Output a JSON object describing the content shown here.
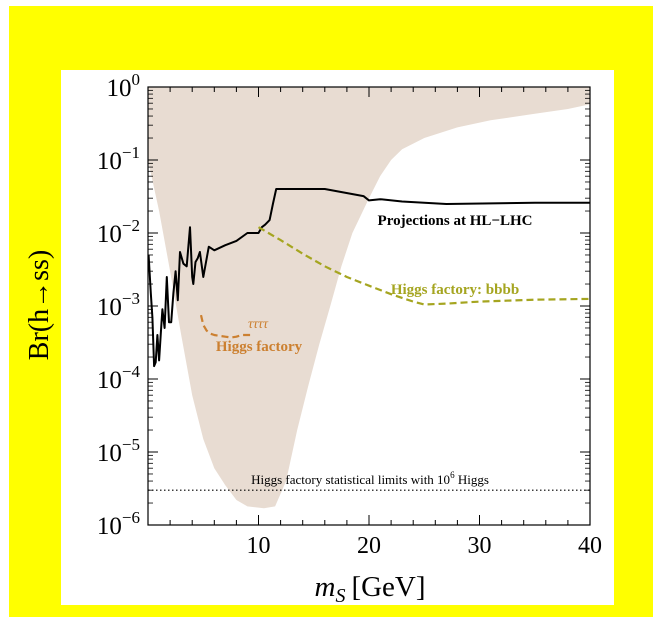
{
  "chart_data": {
    "type": "line",
    "xlabel_italic": "m",
    "xlabel_sub": "S",
    "xlabel_rest": "[GeV]",
    "ylabel": "Br(h→ss)",
    "xlim": [
      0,
      40
    ],
    "ylim": [
      1e-06,
      1
    ],
    "yscale": "log",
    "x_ticks": [
      10,
      20,
      30,
      40
    ],
    "y_ticks": [
      {
        "value": 1e-06,
        "base": "10",
        "exp": "−6"
      },
      {
        "value": 1e-05,
        "base": "10",
        "exp": "−5"
      },
      {
        "value": 0.0001,
        "base": "10",
        "exp": "−4"
      },
      {
        "value": 0.001,
        "base": "10",
        "exp": "−3"
      },
      {
        "value": 0.01,
        "base": "10",
        "exp": "−2"
      },
      {
        "value": 0.1,
        "base": "10",
        "exp": "−1"
      },
      {
        "value": 1,
        "base": "10",
        "exp": "0"
      }
    ],
    "excluded_region": {
      "color": "#e8dcd2",
      "left_edge": [
        [
          0,
          1
        ],
        [
          0,
          0.1
        ],
        [
          1,
          0.02
        ],
        [
          2,
          0.003
        ],
        [
          3,
          0.0004
        ],
        [
          4,
          6e-05
        ],
        [
          5,
          1.5e-05
        ],
        [
          6,
          6e-06
        ],
        [
          7,
          3.5e-06
        ],
        [
          8,
          2.2e-06
        ],
        [
          9,
          1.8e-06
        ],
        [
          10.5,
          1.7e-06
        ],
        [
          11.5,
          1.8e-06
        ]
      ],
      "right_edge": [
        [
          11.5,
          1.8e-06
        ],
        [
          12.5,
          4e-06
        ],
        [
          13.5,
          2e-05
        ],
        [
          14.5,
          8e-05
        ],
        [
          15.5,
          0.0003
        ],
        [
          16.5,
          0.001
        ],
        [
          17.5,
          0.0035
        ],
        [
          18.5,
          0.01
        ],
        [
          20,
          0.03
        ],
        [
          21,
          0.06
        ],
        [
          22,
          0.1
        ],
        [
          23,
          0.14
        ],
        [
          25,
          0.2
        ],
        [
          28,
          0.28
        ],
        [
          31,
          0.35
        ],
        [
          35,
          0.43
        ],
        [
          38,
          0.5
        ],
        [
          40,
          0.58
        ],
        [
          40,
          1
        ]
      ]
    },
    "series": [
      {
        "name": "Projections at HL−LHC",
        "color": "#000000",
        "style": "solid",
        "x": [
          0.05,
          0.25,
          0.4,
          0.55,
          0.7,
          0.85,
          1.0,
          1.15,
          1.3,
          1.5,
          1.7,
          1.9,
          2.1,
          2.3,
          2.5,
          2.7,
          2.9,
          3.2,
          3.5,
          3.8,
          4.0,
          4.1,
          4.3,
          4.5,
          4.7,
          5.0,
          5.5,
          6.0,
          7.0,
          8.0,
          9.0,
          10.0,
          10.3,
          10.6,
          11.0,
          11.3,
          11.6,
          16.0,
          19.5,
          20.0,
          21.0,
          23.0,
          27.0,
          35.0,
          40.0
        ],
        "y": [
          0.005,
          0.0015,
          0.0007,
          0.00015,
          0.00017,
          0.0004,
          0.00018,
          0.0004,
          0.0009,
          0.0005,
          0.0025,
          0.0006,
          0.0006,
          0.0015,
          0.003,
          0.0012,
          0.0055,
          0.0038,
          0.0035,
          0.012,
          0.0025,
          0.002,
          0.004,
          0.0045,
          0.0055,
          0.0025,
          0.0065,
          0.0058,
          0.0068,
          0.0078,
          0.01,
          0.01,
          0.012,
          0.013,
          0.015,
          0.025,
          0.04,
          0.04,
          0.032,
          0.028,
          0.029,
          0.027,
          0.025,
          0.026,
          0.026
        ],
        "label": "Projections at HL−LHC"
      },
      {
        "name": "Higgs factory: bbbb",
        "color": "#a5a520",
        "style": "dashed",
        "x": [
          10,
          12,
          14,
          16,
          18,
          20,
          22,
          24,
          25,
          27,
          30,
          35,
          40
        ],
        "y": [
          0.012,
          0.008,
          0.0052,
          0.0035,
          0.0025,
          0.0019,
          0.00145,
          0.00115,
          0.00105,
          0.00108,
          0.00115,
          0.00122,
          0.00125
        ],
        "label": "Higgs factory: bbbb"
      },
      {
        "name": "Higgs factory ττττ",
        "color": "#cc8030",
        "style": "dashed",
        "x": [
          4.8,
          5.0,
          5.3,
          5.6,
          6.0,
          6.5,
          7.0,
          7.5,
          8.0,
          8.5,
          9.0,
          9.5
        ],
        "y": [
          0.00075,
          0.00055,
          0.00046,
          0.00042,
          0.0004,
          0.00039,
          0.00038,
          0.00037,
          0.00038,
          0.0004,
          0.0004,
          0.0004
        ],
        "label": "Higgs factory"
      }
    ],
    "tautau_label": "ττττ",
    "hline": {
      "value": 3e-06,
      "style": "dotted",
      "label_main": "Higgs factory statistical limits with 10",
      "label_exp": "6",
      "label_tail": " Higgs"
    }
  }
}
